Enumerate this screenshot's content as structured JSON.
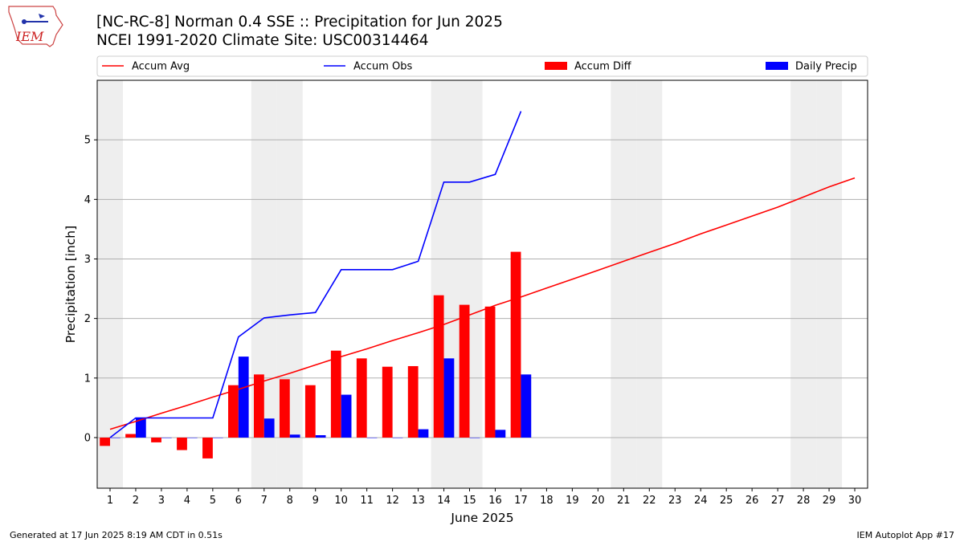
{
  "logo_text": "IEM",
  "title_line1": "[NC-RC-8] Norman 0.4 SSE :: Precipitation for Jun 2025",
  "title_line2": "NCEI 1991-2020 Climate Site: USC00314464",
  "footer_left": "Generated at 17 Jun 2025 8:19 AM CDT in 0.51s",
  "footer_right": "IEM Autoplot App #17",
  "chart_data": {
    "type": "bar",
    "xlabel": "June 2025",
    "ylabel": "Precipitation [inch]",
    "x_ticks": [
      1,
      2,
      3,
      4,
      5,
      6,
      7,
      8,
      9,
      10,
      11,
      12,
      13,
      14,
      15,
      16,
      17,
      18,
      19,
      20,
      21,
      22,
      23,
      24,
      25,
      26,
      27,
      28,
      29,
      30
    ],
    "xlim": [
      0.5,
      30.5
    ],
    "ylim": [
      -0.85,
      6.0
    ],
    "y_ticks": [
      0,
      1,
      2,
      3,
      4,
      5
    ],
    "grid": "horizontal",
    "legend_position": "top",
    "weekend_shading_days": [
      1,
      7,
      8,
      14,
      15,
      21,
      22,
      28,
      29
    ],
    "weekend_shade_color": "#eeeeee",
    "colors": {
      "accum_avg": "#ff0000",
      "accum_obs": "#0000ff",
      "accum_diff": "#ff0000",
      "daily_precip": "#0000ff"
    },
    "series": [
      {
        "name": "Accum Avg",
        "kind": "line",
        "x": [
          1,
          2,
          3,
          4,
          5,
          6,
          7,
          8,
          9,
          10,
          11,
          12,
          13,
          14,
          15,
          16,
          17,
          18,
          19,
          20,
          21,
          22,
          23,
          24,
          25,
          26,
          27,
          28,
          29,
          30
        ],
        "values": [
          0.14,
          0.27,
          0.41,
          0.54,
          0.68,
          0.81,
          0.95,
          1.08,
          1.22,
          1.36,
          1.49,
          1.63,
          1.76,
          1.9,
          2.06,
          2.22,
          2.36,
          2.51,
          2.66,
          2.81,
          2.96,
          3.11,
          3.26,
          3.42,
          3.57,
          3.72,
          3.87,
          4.04,
          4.21,
          4.36
        ]
      },
      {
        "name": "Accum Obs",
        "kind": "line",
        "x": [
          1,
          2,
          3,
          4,
          5,
          6,
          7,
          8,
          9,
          10,
          11,
          12,
          13,
          14,
          15,
          16,
          17
        ],
        "values": [
          0.0,
          0.33,
          0.33,
          0.33,
          0.33,
          1.69,
          2.01,
          2.06,
          2.1,
          2.82,
          2.82,
          2.82,
          2.96,
          4.29,
          4.29,
          4.42,
          5.48
        ]
      },
      {
        "name": "Accum Diff",
        "kind": "bar",
        "x": [
          1,
          2,
          3,
          4,
          5,
          6,
          7,
          8,
          9,
          10,
          11,
          12,
          13,
          14,
          15,
          16,
          17
        ],
        "values": [
          -0.14,
          0.06,
          -0.08,
          -0.21,
          -0.35,
          0.88,
          1.06,
          0.98,
          0.88,
          1.46,
          1.33,
          1.19,
          1.2,
          2.39,
          2.23,
          2.2,
          3.12
        ]
      },
      {
        "name": "Daily Precip",
        "kind": "bar",
        "x": [
          1,
          2,
          3,
          4,
          5,
          6,
          7,
          8,
          9,
          10,
          11,
          12,
          13,
          14,
          15,
          16,
          17
        ],
        "values": [
          0.0,
          0.33,
          0.0,
          0.0,
          0.0,
          1.36,
          0.32,
          0.05,
          0.04,
          0.72,
          0.0,
          0.0,
          0.14,
          1.33,
          0.0,
          0.13,
          1.06
        ]
      }
    ]
  }
}
